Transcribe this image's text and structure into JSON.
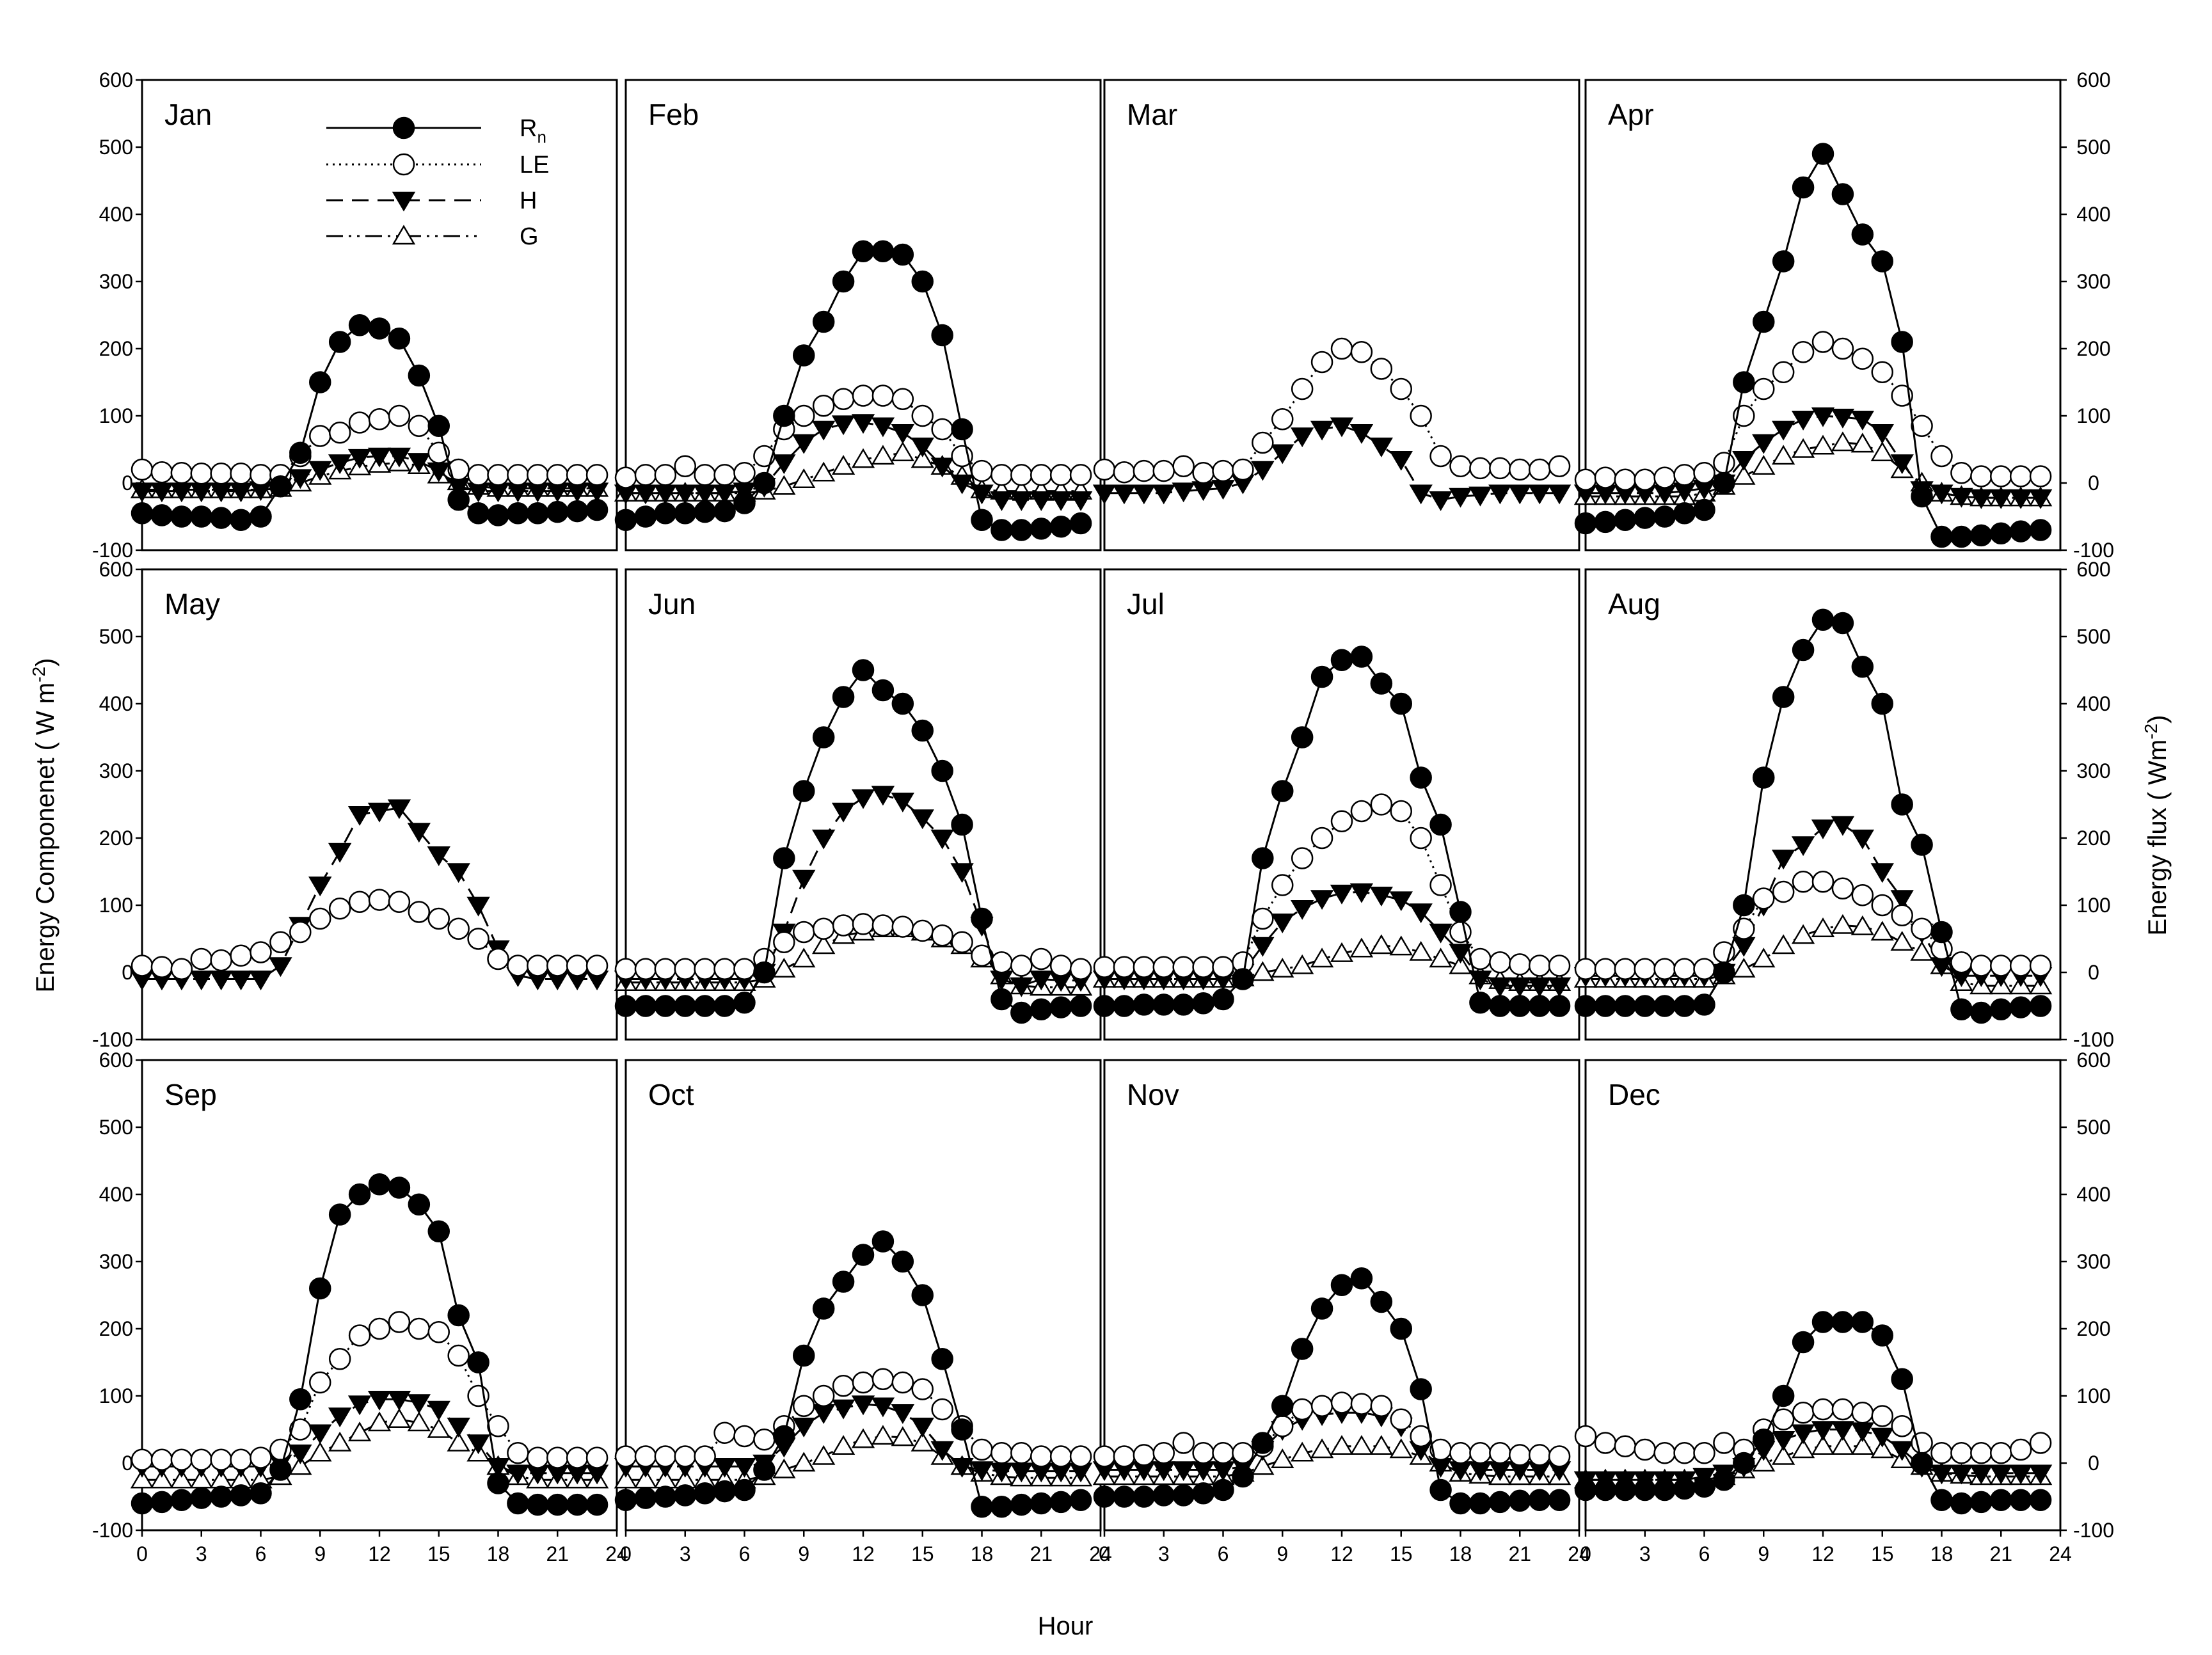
{
  "chart_data": {
    "type": "line",
    "layout": "3x4 small multiples",
    "x": [
      0,
      1,
      2,
      3,
      4,
      5,
      6,
      7,
      8,
      9,
      10,
      11,
      12,
      13,
      14,
      15,
      16,
      17,
      18,
      19,
      20,
      21,
      22,
      23
    ],
    "xlabel": "Hour",
    "ylabel_left": "Energy Componenet ( W m",
    "ylabel_left_sup": "-2",
    "ylabel_left_end": ")",
    "ylabel_right": "Energy flux ( Wm",
    "ylabel_right_sup": "-2",
    "ylabel_right_end": ")",
    "xticks": [
      0,
      3,
      6,
      9,
      12,
      15,
      18,
      21,
      24
    ],
    "xticks_shown_on": "bottom row",
    "ylim": [
      -100,
      600
    ],
    "yticks": [
      -100,
      0,
      100,
      200,
      300,
      400,
      500,
      600
    ],
    "legend": [
      {
        "key": "Rn",
        "label": "R",
        "sub": "n",
        "marker": "filled-circle",
        "line": "solid"
      },
      {
        "key": "LE",
        "label": "LE",
        "marker": "open-circle",
        "line": "dotted"
      },
      {
        "key": "H",
        "label": "H",
        "marker": "filled-triangle-down",
        "line": "dashed"
      },
      {
        "key": "G",
        "label": "G",
        "marker": "open-triangle-up",
        "line": "dash-dot-dot"
      }
    ],
    "panels": [
      {
        "title": "Jan",
        "Rn": [
          -45,
          -48,
          -50,
          -50,
          -52,
          -55,
          -50,
          -5,
          45,
          150,
          210,
          235,
          230,
          215,
          160,
          85,
          -25,
          -45,
          -48,
          -45,
          -45,
          -43,
          -42,
          -40
        ],
        "LE": [
          20,
          16,
          15,
          14,
          14,
          14,
          12,
          12,
          40,
          70,
          75,
          90,
          95,
          100,
          85,
          45,
          20,
          12,
          12,
          12,
          12,
          12,
          12,
          12
        ],
        "H": [
          -12,
          -12,
          -12,
          -12,
          -12,
          -12,
          -10,
          -5,
          8,
          20,
          30,
          38,
          40,
          40,
          32,
          18,
          -5,
          -12,
          -12,
          -12,
          -12,
          -12,
          -12,
          -12
        ],
        "G": [
          -10,
          -10,
          -10,
          -10,
          -10,
          -10,
          -10,
          -8,
          0,
          10,
          18,
          24,
          28,
          30,
          26,
          12,
          2,
          -5,
          -8,
          -8,
          -8,
          -8,
          -8,
          -8
        ]
      },
      {
        "title": "Feb",
        "Rn": [
          -55,
          -50,
          -45,
          -45,
          -43,
          -42,
          -30,
          0,
          100,
          190,
          240,
          300,
          345,
          345,
          340,
          300,
          220,
          80,
          -55,
          -70,
          -70,
          -68,
          -65,
          -60
        ],
        "LE": [
          8,
          12,
          12,
          25,
          12,
          12,
          15,
          40,
          80,
          100,
          115,
          125,
          130,
          130,
          125,
          100,
          80,
          40,
          18,
          12,
          12,
          12,
          12,
          12
        ],
        "H": [
          -15,
          -15,
          -15,
          -15,
          -15,
          -15,
          -12,
          -5,
          30,
          60,
          80,
          88,
          90,
          85,
          75,
          55,
          25,
          0,
          -15,
          -25,
          -25,
          -25,
          -25,
          -25
        ],
        "G": [
          -15,
          -15,
          -15,
          -15,
          -15,
          -15,
          -15,
          -12,
          -5,
          5,
          15,
          25,
          35,
          40,
          45,
          35,
          25,
          10,
          -10,
          -12,
          -12,
          -12,
          -12,
          -12
        ]
      },
      {
        "title": "Mar",
        "LE": [
          20,
          16,
          18,
          18,
          25,
          15,
          18,
          20,
          60,
          95,
          140,
          180,
          200,
          195,
          170,
          140,
          100,
          40,
          25,
          22,
          22,
          20,
          20,
          25
        ],
        "H": [
          -15,
          -15,
          -15,
          -15,
          -12,
          -10,
          -8,
          0,
          20,
          45,
          70,
          80,
          85,
          75,
          55,
          35,
          -15,
          -25,
          -20,
          -18,
          -15,
          -15,
          -15,
          -15
        ]
      },
      {
        "title": "Apr",
        "Rn": [
          -60,
          -58,
          -55,
          -52,
          -50,
          -45,
          -40,
          0,
          150,
          240,
          330,
          440,
          490,
          430,
          370,
          330,
          210,
          -20,
          -80,
          -80,
          -78,
          -75,
          -72,
          -70
        ],
        "LE": [
          5,
          8,
          5,
          5,
          8,
          12,
          15,
          30,
          100,
          140,
          165,
          195,
          210,
          200,
          185,
          165,
          130,
          85,
          40,
          15,
          10,
          10,
          10,
          10
        ],
        "H": [
          -15,
          -15,
          -15,
          -15,
          -15,
          -12,
          -8,
          0,
          35,
          60,
          80,
          95,
          100,
          98,
          95,
          75,
          30,
          -10,
          -15,
          -20,
          -22,
          -22,
          -22,
          -22
        ],
        "G": [
          -20,
          -20,
          -20,
          -20,
          -20,
          -20,
          -15,
          -5,
          10,
          25,
          40,
          50,
          55,
          60,
          58,
          45,
          20,
          0,
          -15,
          -20,
          -22,
          -22,
          -22,
          -22
        ]
      },
      {
        "title": "May",
        "LE": [
          10,
          8,
          5,
          20,
          18,
          25,
          30,
          45,
          60,
          80,
          95,
          105,
          108,
          105,
          90,
          80,
          65,
          50,
          20,
          10,
          10,
          10,
          10,
          10
        ],
        "H": [
          -10,
          -10,
          -10,
          -10,
          -10,
          -10,
          -10,
          10,
          70,
          130,
          180,
          235,
          240,
          245,
          210,
          175,
          150,
          100,
          35,
          -5,
          -10,
          -10,
          -10,
          -10
        ]
      },
      {
        "title": "Jun",
        "Rn": [
          -50,
          -50,
          -50,
          -50,
          -50,
          -50,
          -45,
          0,
          170,
          270,
          350,
          410,
          450,
          420,
          400,
          360,
          300,
          220,
          80,
          -40,
          -60,
          -55,
          -52,
          -50
        ],
        "LE": [
          5,
          5,
          5,
          5,
          5,
          5,
          5,
          20,
          45,
          60,
          65,
          70,
          72,
          70,
          68,
          62,
          55,
          45,
          25,
          15,
          10,
          20,
          10,
          5
        ],
        "H": [
          -10,
          -10,
          -10,
          -10,
          -10,
          -10,
          -10,
          0,
          60,
          140,
          200,
          240,
          260,
          265,
          255,
          230,
          200,
          150,
          70,
          -10,
          -20,
          -10,
          -12,
          -12
        ],
        "G": [
          -15,
          -15,
          -15,
          -15,
          -15,
          -15,
          -15,
          -10,
          5,
          20,
          40,
          55,
          60,
          65,
          65,
          60,
          50,
          40,
          20,
          -5,
          -20,
          -22,
          -22,
          -22
        ]
      },
      {
        "title": "Jul",
        "Rn": [
          -50,
          -50,
          -48,
          -48,
          -48,
          -46,
          -40,
          -10,
          170,
          270,
          350,
          440,
          465,
          470,
          430,
          400,
          290,
          220,
          90,
          -45,
          -50,
          -50,
          -50,
          -50
        ],
        "LE": [
          8,
          8,
          8,
          8,
          8,
          8,
          8,
          15,
          80,
          130,
          170,
          200,
          225,
          240,
          250,
          240,
          200,
          130,
          60,
          20,
          15,
          12,
          10,
          10
        ],
        "H": [
          -10,
          -10,
          -10,
          -10,
          -10,
          -10,
          -10,
          0,
          40,
          75,
          95,
          110,
          118,
          120,
          115,
          108,
          90,
          60,
          30,
          -10,
          -20,
          -20,
          -20,
          -20
        ],
        "G": [
          -10,
          -10,
          -10,
          -10,
          -10,
          -10,
          -10,
          -8,
          0,
          5,
          10,
          20,
          28,
          35,
          40,
          38,
          30,
          20,
          10,
          -5,
          -12,
          -15,
          -15,
          -15
        ]
      },
      {
        "title": "Aug",
        "Rn": [
          -50,
          -50,
          -50,
          -50,
          -50,
          -50,
          -48,
          0,
          100,
          290,
          410,
          480,
          525,
          520,
          455,
          400,
          250,
          190,
          60,
          -55,
          -60,
          -55,
          -52,
          -50
        ],
        "LE": [
          5,
          5,
          5,
          5,
          5,
          5,
          5,
          30,
          65,
          110,
          120,
          135,
          135,
          125,
          115,
          100,
          85,
          65,
          35,
          15,
          10,
          10,
          10,
          10
        ],
        "H": [
          -5,
          -5,
          -5,
          -5,
          -5,
          -5,
          -5,
          0,
          40,
          100,
          170,
          190,
          215,
          220,
          200,
          150,
          110,
          60,
          10,
          -5,
          -5,
          -5,
          -5,
          -5
        ],
        "G": [
          -10,
          -10,
          -10,
          -10,
          -10,
          -10,
          -10,
          -5,
          5,
          20,
          40,
          55,
          65,
          70,
          68,
          60,
          45,
          30,
          10,
          -15,
          -20,
          -20,
          -20,
          -20
        ]
      },
      {
        "title": "Sep",
        "Rn": [
          -60,
          -58,
          -55,
          -52,
          -50,
          -48,
          -45,
          -10,
          95,
          260,
          370,
          400,
          415,
          410,
          385,
          345,
          220,
          150,
          -30,
          -60,
          -62,
          -62,
          -62,
          -62
        ],
        "LE": [
          5,
          5,
          5,
          5,
          5,
          5,
          8,
          20,
          50,
          120,
          155,
          190,
          200,
          210,
          200,
          195,
          160,
          100,
          55,
          15,
          8,
          8,
          8,
          8
        ],
        "H": [
          -5,
          -5,
          -5,
          -5,
          -5,
          -5,
          -5,
          0,
          15,
          45,
          70,
          88,
          95,
          95,
          90,
          80,
          55,
          30,
          -5,
          -15,
          -15,
          -15,
          -15,
          -15
        ],
        "G": [
          -25,
          -25,
          -25,
          -25,
          -25,
          -25,
          -25,
          -20,
          -5,
          15,
          30,
          45,
          60,
          65,
          60,
          50,
          30,
          15,
          -5,
          -20,
          -25,
          -25,
          -25,
          -25
        ]
      },
      {
        "title": "Oct",
        "Rn": [
          -55,
          -52,
          -50,
          -48,
          -45,
          -42,
          -40,
          -10,
          40,
          160,
          230,
          270,
          310,
          330,
          300,
          250,
          155,
          50,
          -65,
          -65,
          -62,
          -60,
          -58,
          -55
        ],
        "LE": [
          10,
          10,
          10,
          10,
          10,
          45,
          40,
          35,
          55,
          85,
          100,
          115,
          120,
          125,
          120,
          110,
          80,
          55,
          20,
          15,
          15,
          10,
          10,
          10
        ],
        "H": [
          -5,
          -5,
          -5,
          -5,
          -5,
          -5,
          -5,
          0,
          25,
          55,
          75,
          82,
          88,
          85,
          75,
          55,
          20,
          -5,
          -10,
          -12,
          -12,
          -12,
          -12,
          -12
        ],
        "G": [
          -25,
          -25,
          -25,
          -25,
          -25,
          -25,
          -25,
          -20,
          -10,
          0,
          10,
          25,
          35,
          40,
          38,
          30,
          10,
          -5,
          -15,
          -20,
          -22,
          -22,
          -22,
          -22
        ]
      },
      {
        "title": "Nov",
        "Rn": [
          -50,
          -50,
          -50,
          -48,
          -48,
          -45,
          -40,
          -20,
          30,
          85,
          170,
          230,
          265,
          275,
          240,
          200,
          110,
          -40,
          -60,
          -60,
          -58,
          -56,
          -55,
          -55
        ],
        "LE": [
          10,
          10,
          12,
          15,
          30,
          15,
          15,
          15,
          25,
          55,
          80,
          85,
          90,
          88,
          85,
          65,
          40,
          20,
          15,
          15,
          15,
          12,
          12,
          10
        ],
        "H": [
          -10,
          -10,
          -10,
          -10,
          -10,
          -10,
          -10,
          -5,
          20,
          50,
          65,
          72,
          75,
          75,
          70,
          55,
          20,
          -5,
          -10,
          -10,
          -10,
          -10,
          -10,
          -10
        ],
        "G": [
          -20,
          -20,
          -20,
          -20,
          -20,
          -20,
          -20,
          -15,
          -5,
          5,
          15,
          20,
          25,
          25,
          25,
          20,
          10,
          0,
          -15,
          -18,
          -20,
          -20,
          -20,
          -20
        ]
      },
      {
        "title": "Dec",
        "Rn": [
          -40,
          -40,
          -40,
          -40,
          -40,
          -38,
          -35,
          -25,
          0,
          35,
          100,
          180,
          210,
          210,
          210,
          190,
          125,
          0,
          -55,
          -60,
          -58,
          -55,
          -55,
          -55
        ],
        "LE": [
          40,
          30,
          25,
          20,
          15,
          15,
          15,
          30,
          20,
          50,
          65,
          75,
          80,
          80,
          75,
          70,
          55,
          30,
          15,
          15,
          15,
          15,
          20,
          30
        ],
        "H": [
          -25,
          -25,
          -25,
          -25,
          -25,
          -25,
          -20,
          -15,
          -5,
          20,
          35,
          45,
          50,
          50,
          48,
          40,
          20,
          -5,
          -15,
          -15,
          -15,
          -15,
          -15,
          -15
        ],
        "G": [
          -25,
          -25,
          -25,
          -25,
          -25,
          -25,
          -25,
          -20,
          -10,
          0,
          10,
          20,
          25,
          25,
          25,
          20,
          5,
          -5,
          -15,
          -18,
          -20,
          -20,
          -20,
          -20
        ]
      }
    ]
  }
}
